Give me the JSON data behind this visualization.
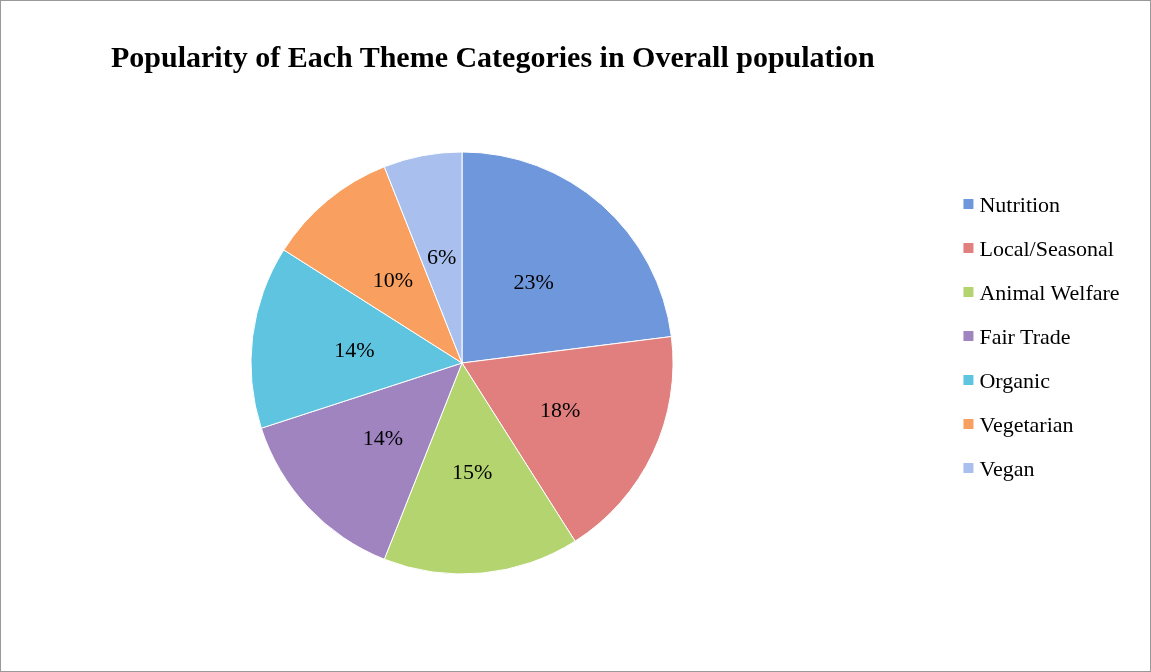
{
  "chart_data": {
    "type": "pie",
    "title": "Popularity of Each Theme Categories in Overall population",
    "categories": [
      "Nutrition",
      "Local/Seasonal",
      "Animal Welfare",
      "Fair Trade",
      "Organic",
      "Vegetarian",
      "Vegan"
    ],
    "values": [
      23,
      18,
      15,
      14,
      14,
      10,
      6
    ],
    "value_labels": [
      "23%",
      "18%",
      "15%",
      "14%",
      "14%",
      "10%",
      "6%"
    ],
    "colors": [
      "#6f97dc",
      "#e07f7d",
      "#b3d46f",
      "#9f84c0",
      "#5ec4df",
      "#f9a060",
      "#a9c0ef"
    ],
    "legend": "right"
  }
}
